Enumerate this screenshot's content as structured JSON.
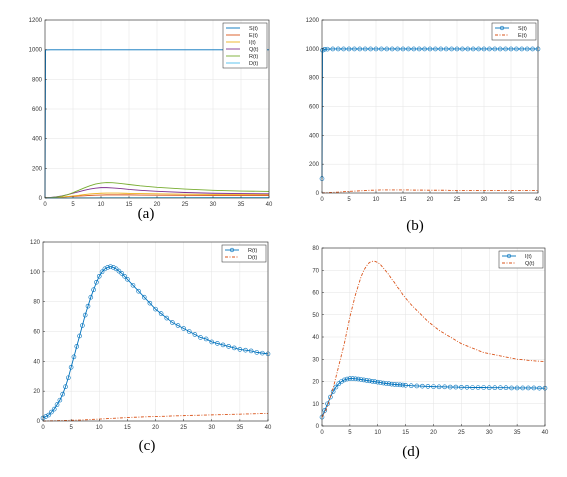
{
  "chart_data": [
    {
      "type": "line",
      "panel_label": "(a)",
      "xlim": [
        0,
        40
      ],
      "ylim": [
        0,
        1200
      ],
      "xticks": [
        0,
        5,
        10,
        15,
        20,
        25,
        30,
        35,
        40
      ],
      "yticks": [
        0,
        200,
        400,
        600,
        800,
        1000,
        1200
      ],
      "grid": true,
      "legend": "top-right",
      "x": [
        0,
        0.1,
        1,
        2,
        3,
        4,
        5,
        6,
        7,
        8,
        9,
        10,
        11,
        12,
        13,
        14,
        15,
        17,
        20,
        25,
        30,
        35,
        40
      ],
      "series": [
        {
          "name": "S(t)",
          "color": "#0072bd",
          "marker": "",
          "dash": "",
          "values": [
            0,
            998,
            999,
            999,
            999,
            999,
            999,
            999,
            999,
            999,
            999,
            999,
            999,
            999,
            999,
            999,
            999,
            999,
            999,
            999,
            999,
            999,
            999
          ]
        },
        {
          "name": "E(t)",
          "color": "#d95319",
          "marker": "",
          "dash": "",
          "values": [
            0,
            1,
            2,
            4,
            6,
            9,
            11,
            13,
            15,
            17,
            19,
            20,
            21,
            21,
            21,
            21,
            21,
            20,
            19,
            18,
            17,
            17,
            17
          ]
        },
        {
          "name": "I(t)",
          "color": "#edb120",
          "marker": "",
          "dash": "",
          "values": [
            0,
            1,
            2,
            4,
            6,
            10,
            14,
            18,
            23,
            27,
            30,
            32,
            33,
            33,
            33,
            32,
            31,
            30,
            28,
            26,
            24,
            23,
            23
          ]
        },
        {
          "name": "Q(t)",
          "color": "#7e2f8e",
          "marker": "",
          "dash": "",
          "values": [
            0,
            2,
            4,
            8,
            14,
            22,
            32,
            42,
            52,
            60,
            66,
            70,
            70,
            68,
            65,
            62,
            58,
            52,
            45,
            37,
            32,
            30,
            28
          ]
        },
        {
          "name": "R(t)",
          "color": "#77ac30",
          "marker": "",
          "dash": "",
          "values": [
            0,
            2,
            3,
            6,
            12,
            22,
            36,
            52,
            68,
            82,
            94,
            101,
            104,
            103,
            100,
            96,
            91,
            82,
            72,
            60,
            52,
            47,
            44
          ]
        },
        {
          "name": "D(t)",
          "color": "#4dbeee",
          "marker": "",
          "dash": "",
          "values": [
            0,
            0,
            0,
            0,
            0,
            0,
            1,
            1,
            1,
            1,
            1,
            2,
            2,
            2,
            2,
            2,
            2,
            2,
            3,
            3,
            4,
            4,
            4
          ]
        }
      ]
    },
    {
      "type": "line",
      "panel_label": "(b)",
      "xlim": [
        0,
        40
      ],
      "ylim": [
        0,
        1200
      ],
      "xticks": [
        0,
        5,
        10,
        15,
        20,
        25,
        30,
        35,
        40
      ],
      "yticks": [
        0,
        200,
        400,
        600,
        800,
        1000,
        1200
      ],
      "grid": true,
      "legend": "top-right",
      "x": [
        0,
        0.1,
        0.5,
        1,
        2,
        3,
        4,
        5,
        6,
        7,
        8,
        9,
        10,
        11,
        12,
        13,
        14,
        15,
        16,
        17,
        18,
        19,
        20,
        21,
        22,
        23,
        24,
        25,
        26,
        27,
        28,
        29,
        30,
        31,
        32,
        33,
        34,
        35,
        36,
        37,
        38,
        39,
        40
      ],
      "series": [
        {
          "name": "S(t)",
          "color": "#0072bd",
          "marker": "circle",
          "dash": "",
          "values": [
            100,
            990,
            997,
            998,
            999,
            999,
            999,
            999,
            999,
            999,
            999,
            999,
            999,
            999,
            999,
            999,
            999,
            999,
            999,
            999,
            999,
            999,
            999,
            999,
            999,
            999,
            999,
            999,
            999,
            999,
            999,
            999,
            999,
            999,
            999,
            999,
            999,
            999,
            999,
            999,
            999,
            999,
            999
          ]
        },
        {
          "name": "E(t)",
          "color": "#d95319",
          "marker": "",
          "dash": "3,1.5,1,1.5",
          "values": [
            0,
            1,
            1,
            2,
            4,
            6,
            9,
            11,
            13,
            15,
            17,
            19,
            20,
            21,
            21,
            21,
            21,
            21,
            21,
            20,
            20,
            20,
            19,
            19,
            19,
            19,
            18,
            18,
            18,
            18,
            18,
            17,
            17,
            17,
            17,
            17,
            17,
            17,
            17,
            17,
            17,
            17,
            17
          ]
        }
      ]
    },
    {
      "type": "line",
      "panel_label": "(c)",
      "xlim": [
        0,
        40
      ],
      "ylim": [
        0,
        120
      ],
      "xticks": [
        0,
        5,
        10,
        15,
        20,
        25,
        30,
        35,
        40
      ],
      "yticks": [
        0,
        20,
        40,
        60,
        80,
        100,
        120
      ],
      "grid": true,
      "legend": "top-right",
      "x": [
        0,
        0.5,
        1,
        1.5,
        2,
        2.5,
        3,
        3.5,
        4,
        4.5,
        5,
        5.5,
        6,
        6.5,
        7,
        7.5,
        8,
        8.5,
        9,
        9.5,
        10,
        10.5,
        11,
        11.5,
        12,
        12.5,
        13,
        13.5,
        14,
        14.5,
        15,
        16,
        17,
        18,
        19,
        20,
        21,
        22,
        23,
        24,
        25,
        26,
        27,
        28,
        29,
        30,
        31,
        32,
        33,
        34,
        35,
        36,
        37,
        38,
        39,
        40
      ],
      "series": [
        {
          "name": "R(t)",
          "color": "#0072bd",
          "marker": "circle",
          "dash": "",
          "values": [
            2,
            3,
            4,
            6,
            8,
            11,
            14,
            18,
            23,
            29,
            36,
            43,
            50,
            57,
            64,
            71,
            77,
            83,
            88,
            93,
            97,
            100,
            102,
            103,
            103.5,
            103,
            102,
            100.5,
            99,
            97,
            95,
            91,
            87,
            83,
            79,
            75,
            72,
            69,
            66,
            64,
            62,
            60,
            58,
            56,
            55,
            53,
            52,
            51,
            50,
            49,
            48,
            47.5,
            47,
            46,
            45.5,
            45
          ]
        },
        {
          "name": "D(t)",
          "color": "#d95319",
          "marker": "",
          "dash": "3,1.5,1,1.5",
          "values": [
            0,
            0,
            0.1,
            0.1,
            0.2,
            0.2,
            0.3,
            0.3,
            0.4,
            0.4,
            0.5,
            0.5,
            0.6,
            0.6,
            0.7,
            0.8,
            0.9,
            1,
            1.1,
            1.2,
            1.3,
            1.4,
            1.5,
            1.6,
            1.7,
            1.8,
            1.9,
            2,
            2.1,
            2.2,
            2.3,
            2.5,
            2.6,
            2.8,
            2.9,
            3,
            3.1,
            3.2,
            3.4,
            3.5,
            3.6,
            3.7,
            3.8,
            3.9,
            4,
            4.1,
            4.2,
            4.3,
            4.4,
            4.5,
            4.6,
            4.7,
            4.8,
            4.9,
            5,
            5
          ]
        }
      ]
    },
    {
      "type": "line",
      "panel_label": "(d)",
      "xlim": [
        0,
        40
      ],
      "ylim": [
        0,
        80
      ],
      "xticks": [
        0,
        5,
        10,
        15,
        20,
        25,
        30,
        35,
        40
      ],
      "yticks": [
        0,
        10,
        20,
        30,
        40,
        50,
        60,
        70,
        80
      ],
      "grid": true,
      "legend": "top-right",
      "x": [
        0,
        0.5,
        1,
        1.5,
        2,
        2.5,
        3,
        3.5,
        4,
        4.5,
        5,
        5.5,
        6,
        6.5,
        7,
        7.5,
        8,
        8.5,
        9,
        9.5,
        10,
        10.5,
        11,
        11.5,
        12,
        12.5,
        13,
        13.5,
        14,
        14.5,
        15,
        16,
        17,
        18,
        19,
        20,
        21,
        22,
        23,
        24,
        25,
        26,
        27,
        28,
        29,
        30,
        31,
        32,
        33,
        34,
        35,
        36,
        37,
        38,
        39,
        40
      ],
      "series": [
        {
          "name": "I(t)",
          "color": "#0072bd",
          "marker": "circle",
          "dash": "",
          "values": [
            4,
            7,
            10,
            13,
            15.5,
            17.5,
            19,
            20,
            20.7,
            21.1,
            21.3,
            21.3,
            21.2,
            21.1,
            20.9,
            20.7,
            20.5,
            20.3,
            20.1,
            19.9,
            19.7,
            19.5,
            19.3,
            19.1,
            19,
            18.8,
            18.7,
            18.6,
            18.5,
            18.4,
            18.3,
            18.1,
            18,
            17.9,
            17.8,
            17.7,
            17.6,
            17.6,
            17.5,
            17.5,
            17.4,
            17.4,
            17.3,
            17.3,
            17.3,
            17.2,
            17.2,
            17.2,
            17.2,
            17.1,
            17.1,
            17.1,
            17.1,
            17.1,
            17,
            17
          ]
        },
        {
          "name": "Q(t)",
          "color": "#d95319",
          "marker": "",
          "dash": "3,1.5,1,1.5",
          "values": [
            4,
            6,
            9,
            13,
            17,
            22,
            27,
            32,
            37,
            43,
            49,
            54,
            59,
            63,
            67,
            70,
            72,
            73.5,
            74,
            74,
            73.5,
            72.5,
            71,
            69.5,
            68,
            66,
            64.5,
            62.5,
            61,
            59,
            57.5,
            54.5,
            52,
            49.5,
            47,
            45,
            43,
            41.5,
            40,
            38.5,
            37,
            36,
            35,
            34,
            33,
            32.5,
            32,
            31.5,
            31,
            30.5,
            30,
            29.8,
            29.5,
            29.3,
            29.1,
            29
          ]
        }
      ]
    }
  ]
}
